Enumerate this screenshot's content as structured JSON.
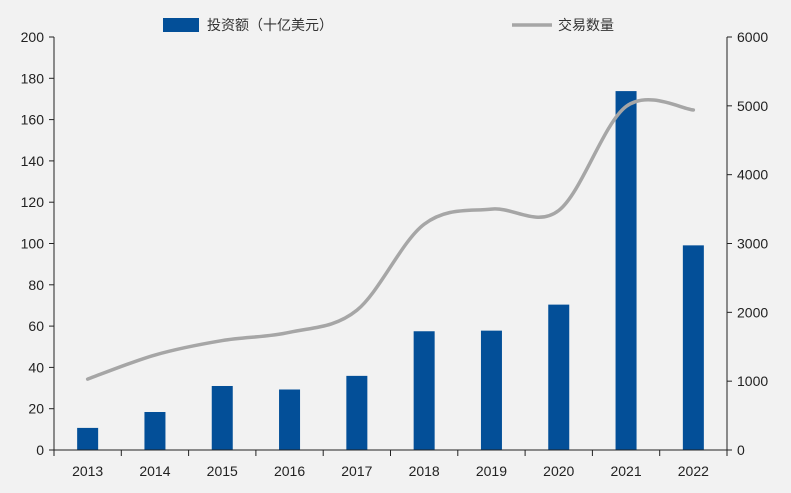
{
  "chart_data": {
    "type": "bar",
    "categories": [
      "2013",
      "2014",
      "2015",
      "2016",
      "2017",
      "2018",
      "2019",
      "2020",
      "2021",
      "2022"
    ],
    "series": [
      {
        "name": "投资额（十亿美元）",
        "type": "bar",
        "axis": "left",
        "values": [
          10.7,
          18.4,
          31.0,
          29.3,
          35.9,
          57.5,
          57.8,
          70.4,
          173.8,
          99.1
        ]
      },
      {
        "name": "交易数量",
        "type": "line",
        "axis": "right",
        "values": [
          1030,
          1380,
          1590,
          1710,
          2030,
          3280,
          3500,
          3480,
          4990,
          4940
        ]
      }
    ],
    "y_left": {
      "min": 0,
      "max": 200,
      "ticks": [
        "0",
        "20",
        "40",
        "60",
        "80",
        "100",
        "120",
        "140",
        "160",
        "180",
        "200"
      ]
    },
    "y_right": {
      "min": 0,
      "max": 6000,
      "ticks": [
        "0",
        "1000",
        "2000",
        "3000",
        "4000",
        "5000",
        "6000"
      ]
    },
    "title": "",
    "xlabel": "",
    "ylabel": "",
    "legend_position": "top-center",
    "colors": {
      "bar": "#034f98",
      "line": "#a6a6a6",
      "axis": "#222222",
      "background": "#f2f2f2"
    }
  }
}
